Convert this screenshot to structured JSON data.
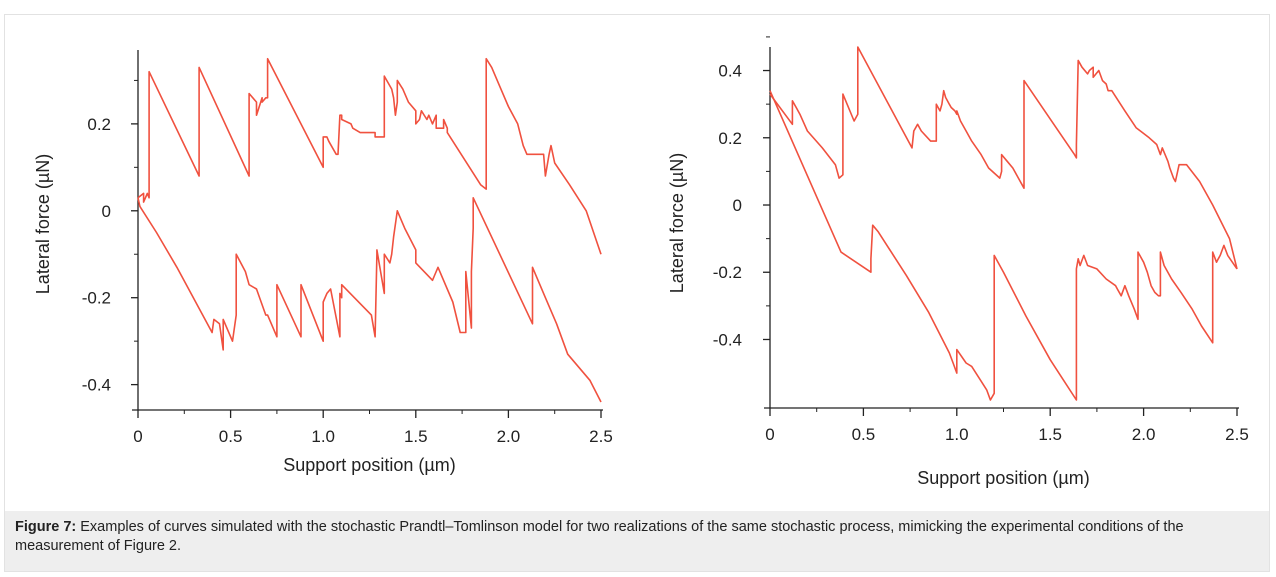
{
  "figure": {
    "label": "Figure 7:",
    "caption": " Examples of curves simulated with the stochastic Prandtl–Tomlinson model for two realizations of the same stochastic process, mimicking the experimental conditions of the measurement of Figure 2."
  },
  "chart_data": [
    {
      "type": "line",
      "title": "",
      "xlabel": "Support position (µm)",
      "ylabel": "Lateral force (µN)",
      "xlim": [
        0,
        2.5
      ],
      "ylim": [
        -0.44,
        0.37
      ],
      "xticks": [
        0,
        0.5,
        1.0,
        1.5,
        2.0,
        2.5
      ],
      "xtick_labels": [
        "0",
        "0.5",
        "1.0",
        "1.5",
        "2.0",
        "2.5"
      ],
      "yticks": [
        0.2,
        0,
        -0.2,
        -0.4
      ],
      "ytick_labels": [
        "0.2",
        "0",
        "-0.2",
        "-0.4"
      ],
      "grid": false,
      "color": "#f0513f",
      "series": [
        {
          "x": [
            0,
            0.03,
            0.03,
            0.05,
            0.06,
            0.06,
            0.33,
            0.33,
            0.6,
            0.6,
            0.64,
            0.64,
            0.67,
            0.67,
            0.69,
            0.7,
            0.7,
            1.0,
            1.0,
            1.02,
            1.03,
            1.07,
            1.07,
            1.08,
            1.09,
            1.1,
            1.1,
            1.15,
            1.16,
            1.2,
            1.21,
            1.28,
            1.28,
            1.33,
            1.33,
            1.37,
            1.38,
            1.39,
            1.4,
            1.4,
            1.43,
            1.46,
            1.5,
            1.5,
            1.52,
            1.53,
            1.56,
            1.57,
            1.59,
            1.61,
            1.61,
            1.65,
            1.65,
            1.67,
            1.67,
            1.85,
            1.88,
            1.88,
            1.91,
            1.95,
            2.0,
            2.05,
            2.08,
            2.1,
            2.12,
            2.16,
            2.19,
            2.2,
            2.22,
            2.23,
            2.25,
            2.33,
            2.42,
            2.5,
            2.5
          ],
          "y": [
            0.03,
            0.04,
            0.02,
            0.04,
            0.03,
            0.32,
            0.08,
            0.33,
            0.08,
            0.27,
            0.25,
            0.22,
            0.26,
            0.25,
            0.26,
            0.26,
            0.35,
            0.1,
            0.17,
            0.17,
            0.16,
            0.13,
            0.13,
            0.13,
            0.22,
            0.22,
            0.21,
            0.2,
            0.19,
            0.18,
            0.18,
            0.18,
            0.17,
            0.17,
            0.31,
            0.28,
            0.26,
            0.22,
            0.25,
            0.3,
            0.28,
            0.25,
            0.23,
            0.2,
            0.21,
            0.23,
            0.21,
            0.22,
            0.2,
            0.22,
            0.19,
            0.19,
            0.21,
            0.19,
            0.18,
            0.06,
            0.05,
            0.35,
            0.33,
            0.29,
            0.24,
            0.2,
            0.15,
            0.13,
            0.13,
            0.13,
            0.13,
            0.08,
            0.13,
            0.15,
            0.11,
            0.06,
            0.0,
            -0.1,
            -0.1
          ]
        },
        {
          "x": [
            0,
            0.01,
            0.1,
            0.21,
            0.4,
            0.41,
            0.44,
            0.46,
            0.46,
            0.51,
            0.51,
            0.53,
            0.53,
            0.58,
            0.6,
            0.64,
            0.69,
            0.7,
            0.75,
            0.75,
            0.88,
            0.88,
            1.0,
            1.0,
            1.02,
            1.04,
            1.09,
            1.09,
            1.1,
            1.1,
            1.26,
            1.28,
            1.29,
            1.29,
            1.33,
            1.33,
            1.36,
            1.37,
            1.38,
            1.4,
            1.44,
            1.5,
            1.5,
            1.59,
            1.6,
            1.62,
            1.7,
            1.74,
            1.77,
            1.77,
            1.8,
            1.8,
            1.81,
            1.81,
            2.13,
            2.13,
            2.2,
            2.26,
            2.32,
            2.44,
            2.5,
            2.5
          ],
          "y": [
            0.03,
            0.01,
            -0.05,
            -0.13,
            -0.28,
            -0.25,
            -0.26,
            -0.32,
            -0.25,
            -0.3,
            -0.3,
            -0.24,
            -0.1,
            -0.14,
            -0.17,
            -0.18,
            -0.24,
            -0.24,
            -0.29,
            -0.17,
            -0.29,
            -0.17,
            -0.3,
            -0.21,
            -0.19,
            -0.18,
            -0.29,
            -0.19,
            -0.2,
            -0.17,
            -0.24,
            -0.29,
            -0.1,
            -0.09,
            -0.19,
            -0.1,
            -0.12,
            -0.1,
            -0.06,
            0.0,
            -0.04,
            -0.09,
            -0.12,
            -0.16,
            -0.15,
            -0.13,
            -0.21,
            -0.28,
            -0.28,
            -0.14,
            -0.27,
            -0.14,
            -0.04,
            0.03,
            -0.26,
            -0.13,
            -0.2,
            -0.26,
            -0.33,
            -0.39,
            -0.44,
            -0.44
          ]
        }
      ]
    },
    {
      "type": "line",
      "title": "",
      "xlabel": "Support position (µm)",
      "ylabel": "Lateral force (µN)",
      "xlim": [
        0,
        2.5
      ],
      "ylim": [
        -0.58,
        0.47
      ],
      "xticks": [
        0,
        0.5,
        1.0,
        1.5,
        2.0,
        2.5
      ],
      "xtick_labels": [
        "0",
        "0.5",
        "1.0",
        "1.5",
        "2.0",
        "2.5"
      ],
      "yticks": [
        0.4,
        0.2,
        0,
        -0.2,
        -0.4
      ],
      "ytick_labels": [
        "0.4",
        "0.2",
        "0",
        "-0.2",
        "-0.4"
      ],
      "grid": false,
      "color": "#f0513f",
      "series": [
        {
          "x": [
            0,
            0.12,
            0.12,
            0.14,
            0.16,
            0.2,
            0.28,
            0.35,
            0.37,
            0.39,
            0.39,
            0.45,
            0.47,
            0.47,
            0.76,
            0.77,
            0.78,
            0.79,
            0.81,
            0.86,
            0.89,
            0.89,
            0.9,
            0.91,
            0.92,
            0.93,
            0.94,
            0.96,
            0.97,
            0.99,
            1.0,
            1.0,
            1.02,
            1.05,
            1.08,
            1.13,
            1.17,
            1.23,
            1.24,
            1.24,
            1.27,
            1.27,
            1.3,
            1.33,
            1.36,
            1.36,
            1.63,
            1.64,
            1.64,
            1.65,
            1.66,
            1.67,
            1.7,
            1.71,
            1.73,
            1.73,
            1.76,
            1.78,
            1.8,
            1.81,
            1.83,
            1.9,
            1.96,
            2.03,
            2.07,
            2.09,
            2.1,
            2.13,
            2.14,
            2.16,
            2.17,
            2.19,
            2.23,
            2.3,
            2.37,
            2.46,
            2.5
          ],
          "y": [
            0.33,
            0.24,
            0.31,
            0.29,
            0.27,
            0.22,
            0.17,
            0.12,
            0.08,
            0.09,
            0.33,
            0.25,
            0.27,
            0.47,
            0.17,
            0.22,
            0.23,
            0.24,
            0.22,
            0.19,
            0.19,
            0.3,
            0.29,
            0.28,
            0.3,
            0.34,
            0.32,
            0.3,
            0.29,
            0.28,
            0.27,
            0.28,
            0.25,
            0.22,
            0.19,
            0.15,
            0.11,
            0.08,
            0.1,
            0.15,
            0.13,
            0.13,
            0.11,
            0.08,
            0.05,
            0.37,
            0.15,
            0.14,
            0.18,
            0.43,
            0.42,
            0.41,
            0.39,
            0.4,
            0.41,
            0.38,
            0.4,
            0.37,
            0.36,
            0.34,
            0.34,
            0.28,
            0.23,
            0.2,
            0.18,
            0.15,
            0.17,
            0.13,
            0.11,
            0.08,
            0.07,
            0.12,
            0.12,
            0.07,
            0.0,
            -0.1,
            -0.19
          ]
        },
        {
          "x": [
            0,
            0.19,
            0.38,
            0.54,
            0.54,
            0.55,
            0.58,
            0.73,
            0.85,
            0.96,
            0.98,
            1.0,
            1.0,
            1.05,
            1.08,
            1.16,
            1.18,
            1.2,
            1.2,
            1.25,
            1.37,
            1.5,
            1.64,
            1.64,
            1.65,
            1.66,
            1.68,
            1.7,
            1.75,
            1.8,
            1.85,
            1.86,
            1.88,
            1.9,
            1.92,
            1.95,
            1.97,
            1.97,
            2.0,
            2.02,
            2.04,
            2.06,
            2.08,
            2.09,
            2.09,
            2.11,
            2.15,
            2.2,
            2.26,
            2.31,
            2.37,
            2.37,
            2.39,
            2.39,
            2.4,
            2.41,
            2.43,
            2.45,
            2.5
          ],
          "y": [
            0.34,
            0.1,
            -0.14,
            -0.2,
            -0.16,
            -0.06,
            -0.08,
            -0.21,
            -0.32,
            -0.44,
            -0.47,
            -0.5,
            -0.43,
            -0.47,
            -0.48,
            -0.55,
            -0.58,
            -0.56,
            -0.15,
            -0.2,
            -0.33,
            -0.46,
            -0.58,
            -0.19,
            -0.16,
            -0.18,
            -0.15,
            -0.18,
            -0.19,
            -0.22,
            -0.24,
            -0.25,
            -0.27,
            -0.24,
            -0.27,
            -0.31,
            -0.34,
            -0.14,
            -0.17,
            -0.2,
            -0.24,
            -0.26,
            -0.27,
            -0.27,
            -0.14,
            -0.18,
            -0.22,
            -0.26,
            -0.31,
            -0.36,
            -0.41,
            -0.14,
            -0.17,
            -0.17,
            -0.16,
            -0.15,
            -0.12,
            -0.15,
            -0.19
          ]
        }
      ]
    }
  ]
}
